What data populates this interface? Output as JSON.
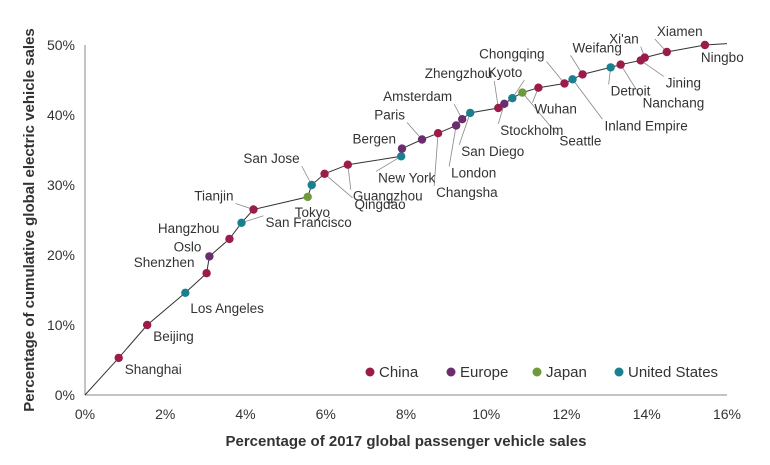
{
  "chart_data": {
    "type": "line",
    "title": "",
    "xlabel": "Percentage of 2017 global passenger vehicle sales",
    "ylabel": "Percentage of cumulative global electric vehicle sales",
    "xlim": [
      0,
      16
    ],
    "ylim": [
      0,
      50
    ],
    "x_ticks": [
      {
        "value": 0,
        "label": "0%"
      },
      {
        "value": 2,
        "label": "2%"
      },
      {
        "value": 4,
        "label": "4%"
      },
      {
        "value": 6,
        "label": "6%"
      },
      {
        "value": 8,
        "label": "8%"
      },
      {
        "value": 10,
        "label": "10%"
      },
      {
        "value": 12,
        "label": "12%"
      },
      {
        "value": 14,
        "label": "14%"
      },
      {
        "value": 16,
        "label": "16%"
      }
    ],
    "y_ticks": [
      {
        "value": 0,
        "label": "0%"
      },
      {
        "value": 10,
        "label": "10%"
      },
      {
        "value": 20,
        "label": "20%"
      },
      {
        "value": 30,
        "label": "30%"
      },
      {
        "value": 40,
        "label": "40%"
      },
      {
        "value": 50,
        "label": "50%"
      }
    ],
    "grid": false,
    "legend_position": "bottom-right",
    "legend": [
      {
        "key": "china",
        "label": "China",
        "color": "#9b1b4b"
      },
      {
        "key": "europe",
        "label": "Europe",
        "color": "#6a2e6e"
      },
      {
        "key": "japan",
        "label": "Japan",
        "color": "#6f9a3c"
      },
      {
        "key": "us",
        "label": "United States",
        "color": "#1a7f8e"
      }
    ],
    "points": [
      {
        "name": "Shanghai",
        "region": "china",
        "x": 0.84,
        "y": 5.3
      },
      {
        "name": "Beijing",
        "region": "china",
        "x": 1.55,
        "y": 10.0
      },
      {
        "name": "Los Angeles",
        "region": "us",
        "x": 2.5,
        "y": 14.6
      },
      {
        "name": "Shenzhen",
        "region": "china",
        "x": 3.03,
        "y": 17.4
      },
      {
        "name": "Oslo",
        "region": "europe",
        "x": 3.1,
        "y": 19.8
      },
      {
        "name": "Hangzhou",
        "region": "china",
        "x": 3.6,
        "y": 22.3
      },
      {
        "name": "San Francisco",
        "region": "us",
        "x": 3.9,
        "y": 24.6
      },
      {
        "name": "Tianjin",
        "region": "china",
        "x": 4.2,
        "y": 26.5
      },
      {
        "name": "Tokyo",
        "region": "japan",
        "x": 5.55,
        "y": 28.3
      },
      {
        "name": "San Jose",
        "region": "us",
        "x": 5.65,
        "y": 30.0
      },
      {
        "name": "Qingdao",
        "region": "china",
        "x": 5.97,
        "y": 31.6
      },
      {
        "name": "Guangzhou",
        "region": "china",
        "x": 6.55,
        "y": 32.9
      },
      {
        "name": "New York",
        "region": "us",
        "x": 7.88,
        "y": 34.1
      },
      {
        "name": "Bergen",
        "region": "europe",
        "x": 7.9,
        "y": 35.2
      },
      {
        "name": "Paris",
        "region": "europe",
        "x": 8.4,
        "y": 36.5
      },
      {
        "name": "Changsha",
        "region": "china",
        "x": 8.8,
        "y": 37.4
      },
      {
        "name": "London",
        "region": "europe",
        "x": 9.25,
        "y": 38.5
      },
      {
        "name": "Amsterdam",
        "region": "europe",
        "x": 9.4,
        "y": 39.4
      },
      {
        "name": "San Diego",
        "region": "us",
        "x": 9.6,
        "y": 40.3
      },
      {
        "name": "Zhengzhou",
        "region": "china",
        "x": 10.3,
        "y": 41.0
      },
      {
        "name": "Stockholm",
        "region": "europe",
        "x": 10.45,
        "y": 41.6
      },
      {
        "name": "Kyoto",
        "region": "us",
        "x": 10.65,
        "y": 42.4
      },
      {
        "name": "Seattle",
        "region": "japan",
        "x": 10.9,
        "y": 43.2
      },
      {
        "name": "Wuhan",
        "region": "china",
        "x": 11.3,
        "y": 43.9
      },
      {
        "name": "Chongqing",
        "region": "china",
        "x": 11.95,
        "y": 44.5
      },
      {
        "name": "Inland Empire",
        "region": "us",
        "x": 12.15,
        "y": 45.1
      },
      {
        "name": "Weifang",
        "region": "china",
        "x": 12.4,
        "y": 45.8
      },
      {
        "name": "Detroit",
        "region": "us",
        "x": 13.1,
        "y": 46.8
      },
      {
        "name": "Nanchang",
        "region": "china",
        "x": 13.35,
        "y": 47.2
      },
      {
        "name": "Jining",
        "region": "china",
        "x": 13.85,
        "y": 47.8
      },
      {
        "name": "Xi'an",
        "region": "china",
        "x": 13.95,
        "y": 48.2
      },
      {
        "name": "Xiamen",
        "region": "china",
        "x": 14.5,
        "y": 49.0
      },
      {
        "name": "Ningbo",
        "region": "china",
        "x": 15.45,
        "y": 50.0
      }
    ]
  }
}
